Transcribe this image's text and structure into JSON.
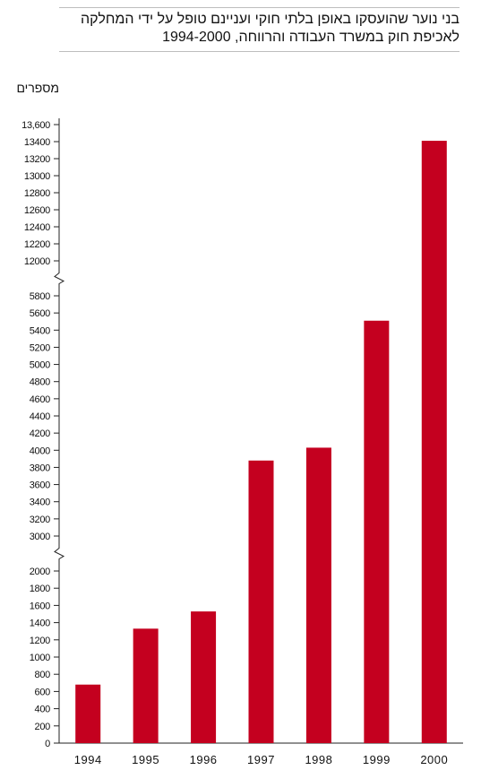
{
  "chart_data": {
    "type": "bar",
    "title": "בני נוער שהועסקו באופן בלתי חוקי ועניינם טופל על ידי המחלקה לאכיפת חוק במשרד העבודה והרווחה, 1994-2000",
    "title_lines": [
      "בני נוער שהועסקו באופן בלתי חוקי ועניינם טופל על ידי המחלקה",
      "לאכיפת חוק במשרד העבודה והרווחה, 1994-2000"
    ],
    "ylabel": "מספרים",
    "xlabel": "",
    "categories": [
      "1994",
      "1995",
      "1996",
      "1997",
      "1998",
      "1999",
      "2000"
    ],
    "values": [
      680,
      1330,
      1530,
      3880,
      4030,
      5510,
      13410
    ],
    "color": "#c4001f",
    "grid": false,
    "axis_breaks": [
      [
        2000,
        3000
      ],
      [
        5800,
        12000
      ]
    ],
    "segments": [
      {
        "ylim": [
          0,
          2000
        ],
        "ticks": [
          "0",
          "200",
          "400",
          "600",
          "800",
          "1000",
          "1200",
          "1400",
          "1600",
          "1800",
          "2000"
        ]
      },
      {
        "ylim": [
          3000,
          5800
        ],
        "ticks": [
          "3000",
          "3200",
          "3400",
          "3600",
          "3800",
          "4000",
          "4200",
          "4400",
          "4600",
          "4800",
          "5000",
          "5200",
          "5400",
          "5600",
          "5800"
        ]
      },
      {
        "ylim": [
          12000,
          13600
        ],
        "ticks": [
          "12000",
          "12200",
          "12400",
          "12600",
          "12800",
          "13000",
          "13200",
          "13400",
          "13,600"
        ]
      }
    ]
  }
}
